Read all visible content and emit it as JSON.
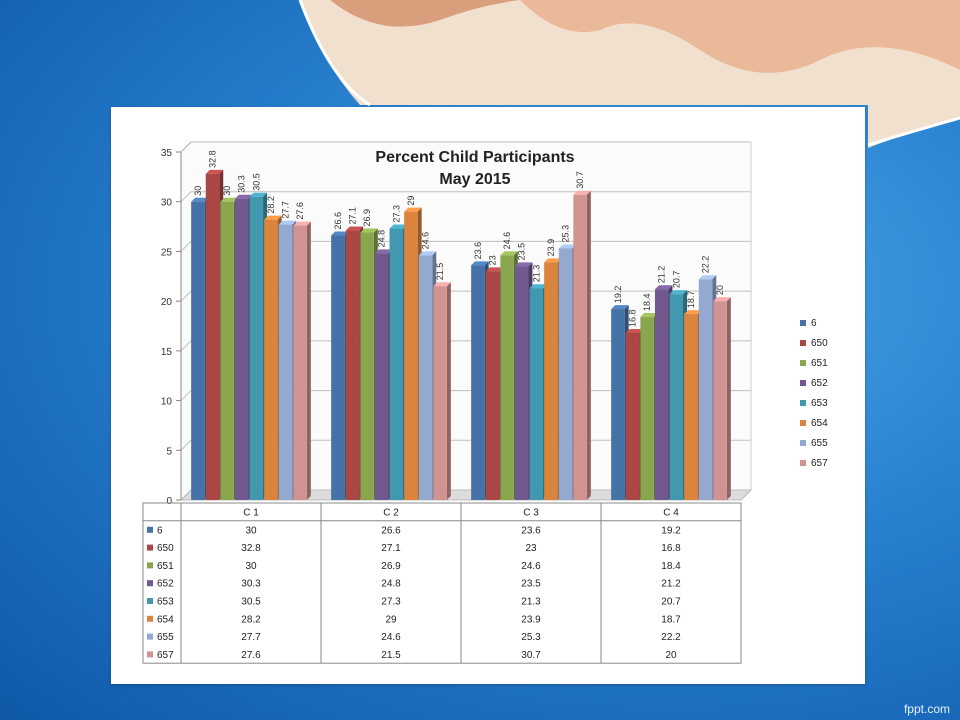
{
  "slide": {
    "brand": "fppt.com"
  },
  "chart_data": {
    "type": "bar",
    "title": [
      "Percent Child Participants",
      "May 2015"
    ],
    "categories": [
      "C 1",
      "C 2",
      "C 3",
      "C 4"
    ],
    "ylim": [
      0,
      35
    ],
    "yticks": [
      0,
      5,
      10,
      15,
      20,
      25,
      30,
      35
    ],
    "grid": true,
    "legend_position": "right",
    "series": [
      {
        "name": "6",
        "color": "#4572a7",
        "values": [
          30,
          26.6,
          23.6,
          19.2
        ]
      },
      {
        "name": "650",
        "color": "#aa4643",
        "values": [
          32.8,
          27.1,
          23,
          16.8
        ]
      },
      {
        "name": "651",
        "color": "#89a54e",
        "values": [
          30,
          26.9,
          24.6,
          18.4
        ]
      },
      {
        "name": "652",
        "color": "#71588f",
        "values": [
          30.3,
          24.8,
          23.5,
          21.2
        ]
      },
      {
        "name": "653",
        "color": "#4198af",
        "values": [
          30.5,
          27.3,
          21.3,
          20.7
        ]
      },
      {
        "name": "654",
        "color": "#db843d",
        "values": [
          28.2,
          29,
          23.9,
          18.7
        ]
      },
      {
        "name": "655",
        "color": "#93a9cf",
        "values": [
          27.7,
          24.6,
          25.3,
          22.2
        ]
      },
      {
        "name": "657",
        "color": "#d19392",
        "values": [
          27.6,
          21.5,
          30.7,
          20
        ]
      }
    ]
  }
}
